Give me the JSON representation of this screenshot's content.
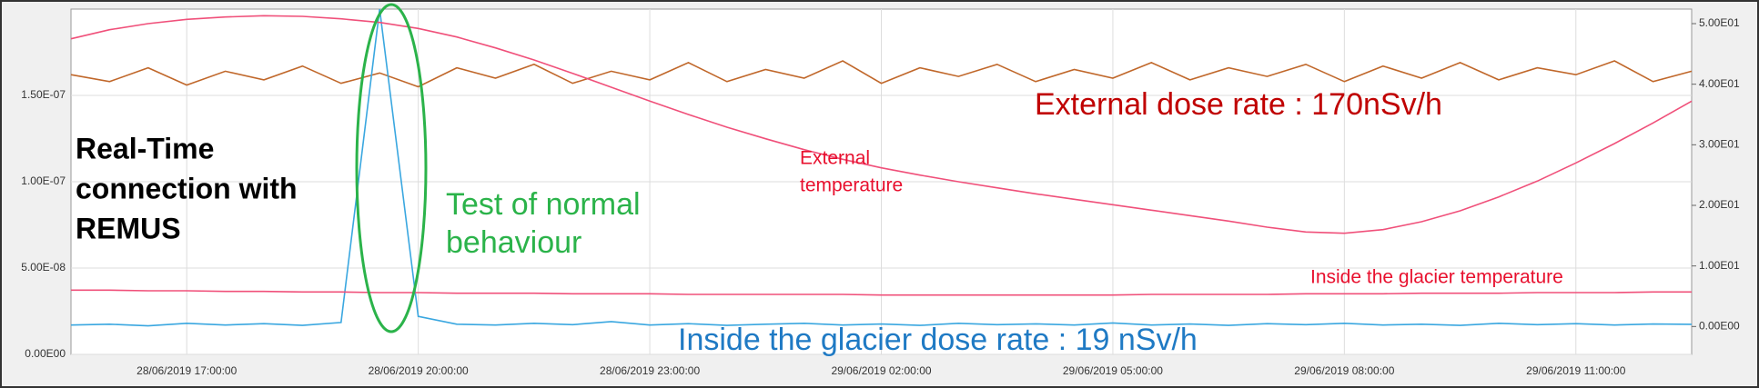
{
  "chart_data": {
    "type": "line",
    "annotations": [
      "Real-Time",
      "connection with",
      "REMUS",
      "Test of normal",
      "behaviour",
      "External dose rate : 170nSv/h",
      "External",
      "temperature",
      "Inside the glacier  temperature",
      "Inside the glacier dose rate : 19 nSv/h"
    ],
    "x": [
      "28/06/2019 15:30:00",
      "28/06/2019 16:00:00",
      "28/06/2019 16:30:00",
      "28/06/2019 17:00:00",
      "28/06/2019 17:30:00",
      "28/06/2019 18:00:00",
      "28/06/2019 18:30:00",
      "28/06/2019 19:00:00",
      "28/06/2019 19:30:00",
      "28/06/2019 20:00:00",
      "28/06/2019 20:30:00",
      "28/06/2019 21:00:00",
      "28/06/2019 21:30:00",
      "28/06/2019 22:00:00",
      "28/06/2019 22:30:00",
      "28/06/2019 23:00:00",
      "28/06/2019 23:30:00",
      "29/06/2019 00:00:00",
      "29/06/2019 00:30:00",
      "29/06/2019 01:00:00",
      "29/06/2019 01:30:00",
      "29/06/2019 02:00:00",
      "29/06/2019 02:30:00",
      "29/06/2019 03:00:00",
      "29/06/2019 03:30:00",
      "29/06/2019 04:00:00",
      "29/06/2019 04:30:00",
      "29/06/2019 05:00:00",
      "29/06/2019 05:30:00",
      "29/06/2019 06:00:00",
      "29/06/2019 06:30:00",
      "29/06/2019 07:00:00",
      "29/06/2019 07:30:00",
      "29/06/2019 08:00:00",
      "29/06/2019 08:30:00",
      "29/06/2019 09:00:00",
      "29/06/2019 09:30:00",
      "29/06/2019 10:00:00",
      "29/06/2019 10:30:00",
      "29/06/2019 11:00:00",
      "29/06/2019 11:30:00",
      "29/06/2019 12:00:00",
      "29/06/2019 12:30:00"
    ],
    "series": [
      {
        "name": "External dose rate",
        "color": "#c0672a",
        "axis": "y",
        "values": [
          1.62e-07,
          1.58e-07,
          1.66e-07,
          1.56e-07,
          1.64e-07,
          1.59e-07,
          1.67e-07,
          1.57e-07,
          1.63e-07,
          1.55e-07,
          1.66e-07,
          1.6e-07,
          1.68e-07,
          1.57e-07,
          1.64e-07,
          1.59e-07,
          1.69e-07,
          1.58e-07,
          1.65e-07,
          1.6e-07,
          1.7e-07,
          1.57e-07,
          1.66e-07,
          1.61e-07,
          1.68e-07,
          1.58e-07,
          1.65e-07,
          1.6e-07,
          1.69e-07,
          1.59e-07,
          1.66e-07,
          1.61e-07,
          1.68e-07,
          1.58e-07,
          1.67e-07,
          1.6e-07,
          1.69e-07,
          1.59e-07,
          1.66e-07,
          1.62e-07,
          1.7e-07,
          1.58e-07,
          1.64e-07
        ]
      },
      {
        "name": "Inside the glacier dose rate",
        "color": "#3aa7e0",
        "axis": "y",
        "values": [
          1.7e-08,
          1.75e-08,
          1.65e-08,
          1.8e-08,
          1.7e-08,
          1.78e-08,
          1.68e-08,
          1.85e-08,
          2e-07,
          2.2e-08,
          1.75e-08,
          1.7e-08,
          1.8e-08,
          1.72e-08,
          1.9e-08,
          1.7e-08,
          1.78e-08,
          1.68e-08,
          1.75e-08,
          1.8e-08,
          1.7e-08,
          1.76e-08,
          1.68e-08,
          1.8e-08,
          1.72e-08,
          1.77e-08,
          1.7e-08,
          1.82e-08,
          1.7e-08,
          1.76e-08,
          1.68e-08,
          1.78e-08,
          1.72e-08,
          1.8e-08,
          1.7e-08,
          1.75e-08,
          1.68e-08,
          1.8e-08,
          1.72e-08,
          1.78e-08,
          1.7e-08,
          1.76e-08,
          1.74e-08
        ]
      },
      {
        "name": "External temperature",
        "color": "#f0507a",
        "axis": "y2",
        "values": [
          47.5,
          49.0,
          50.0,
          50.7,
          51.1,
          51.3,
          51.2,
          50.8,
          50.2,
          49.2,
          47.8,
          46.0,
          44.0,
          41.8,
          39.5,
          37.2,
          35.0,
          32.9,
          31.0,
          29.2,
          27.6,
          26.2,
          25.0,
          23.9,
          22.9,
          21.9,
          21.0,
          20.1,
          19.2,
          18.3,
          17.4,
          16.4,
          15.6,
          15.4,
          16.0,
          17.3,
          19.1,
          21.4,
          24.0,
          27.0,
          30.2,
          33.6,
          37.2
        ]
      },
      {
        "name": "Inside the glacier temperature",
        "color": "#f0507a",
        "axis": "y2",
        "values": [
          6.0,
          6.0,
          5.9,
          5.9,
          5.8,
          5.8,
          5.7,
          5.7,
          5.6,
          5.6,
          5.5,
          5.5,
          5.5,
          5.4,
          5.4,
          5.4,
          5.3,
          5.3,
          5.3,
          5.3,
          5.3,
          5.2,
          5.2,
          5.2,
          5.2,
          5.2,
          5.2,
          5.2,
          5.3,
          5.3,
          5.3,
          5.3,
          5.4,
          5.4,
          5.4,
          5.5,
          5.5,
          5.5,
          5.6,
          5.6,
          5.6,
          5.7,
          5.7
        ]
      }
    ],
    "xlim": [
      "28/06/2019 15:30:00",
      "29/06/2019 12:30:00"
    ],
    "xticks": [
      "28/06/2019 17:00:00",
      "28/06/2019 20:00:00",
      "28/06/2019 23:00:00",
      "29/06/2019 02:00:00",
      "29/06/2019 05:00:00",
      "29/06/2019 08:00:00",
      "29/06/2019 11:00:00"
    ],
    "ylim": [
      0,
      2e-07
    ],
    "yticks": [
      {
        "value": 0,
        "label": "0.00E00"
      },
      {
        "value": 5e-08,
        "label": "5.00E-08"
      },
      {
        "value": 1e-07,
        "label": "1.00E-07"
      },
      {
        "value": 1.5e-07,
        "label": "1.50E-07"
      }
    ],
    "y2lim": [
      -4.6,
      52.4
    ],
    "y2ticks": [
      {
        "value": 0,
        "label": "0.00E00"
      },
      {
        "value": 10,
        "label": "1.00E01"
      },
      {
        "value": 20,
        "label": "2.00E01"
      },
      {
        "value": 30,
        "label": "3.00E01"
      },
      {
        "value": 40,
        "label": "4.00E01"
      },
      {
        "value": 50,
        "label": "5.00E01"
      }
    ],
    "grid": true
  }
}
